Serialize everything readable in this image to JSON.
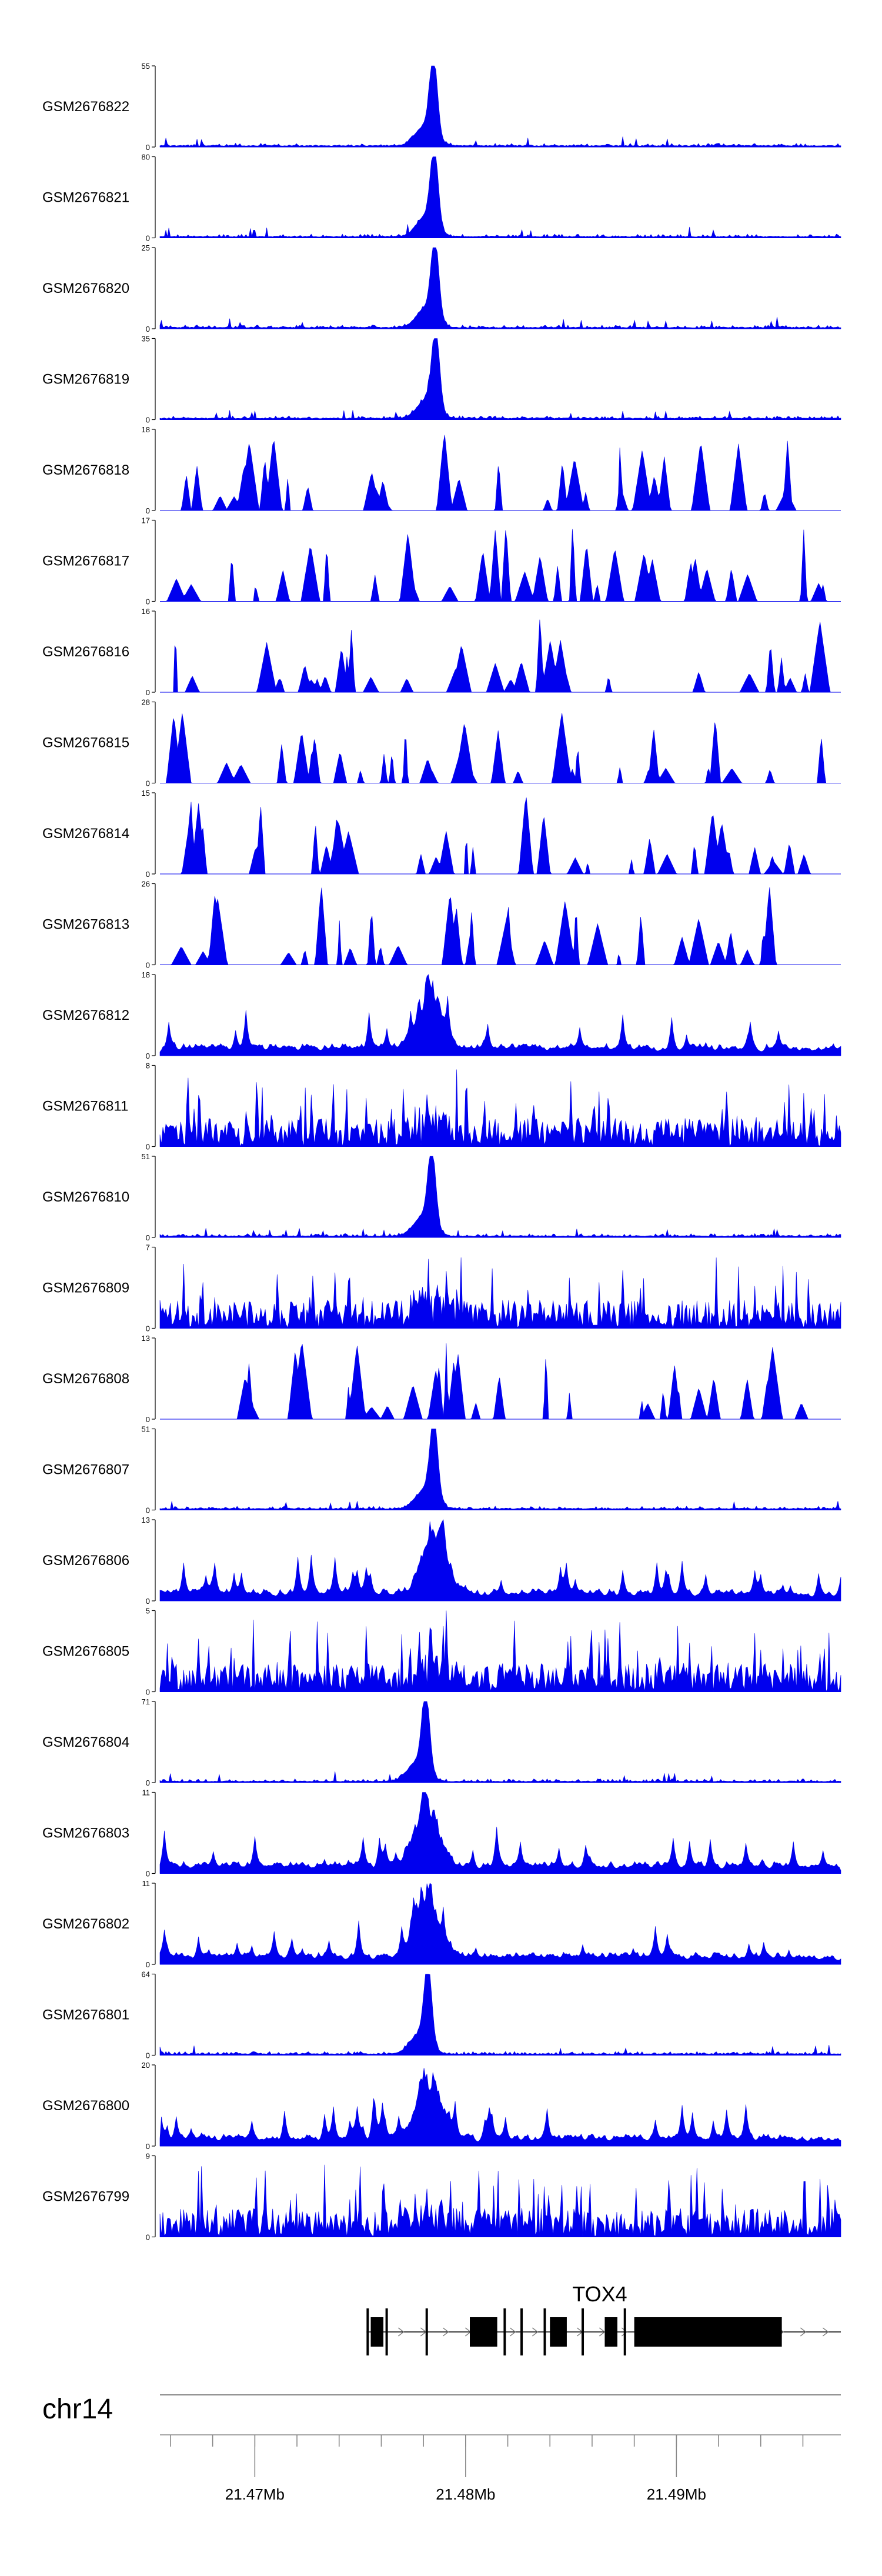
{
  "chart_data": {
    "type": "area",
    "title": "",
    "fill_color": "#0000ee",
    "region": {
      "chrom": "chr14",
      "start": 21.4655,
      "end": 21.4978,
      "unit": "Mb"
    },
    "x_ticks": [
      "21.47Mb",
      "21.48Mb",
      "21.49Mb"
    ],
    "x_tick_values": [
      21.47,
      21.48,
      21.49
    ],
    "gene": {
      "name": "TOX4",
      "strand": "+",
      "start": 21.4753,
      "end": 21.4978,
      "exons": [
        [
          21.4753,
          21.4754
        ],
        [
          21.4755,
          21.4761
        ],
        [
          21.4762,
          21.4763
        ],
        [
          21.4781,
          21.4782
        ],
        [
          21.4802,
          21.4815
        ],
        [
          21.4818,
          21.4819
        ],
        [
          21.4826,
          21.4827
        ],
        [
          21.4837,
          21.4838
        ],
        [
          21.484,
          21.4848
        ],
        [
          21.4855,
          21.4856
        ],
        [
          21.4866,
          21.4872
        ],
        [
          21.4875,
          21.4876
        ],
        [
          21.488,
          21.495
        ]
      ]
    },
    "tracks": [
      {
        "name": "GSM2676822",
        "ymax": "55",
        "profile": "sharp"
      },
      {
        "name": "GSM2676821",
        "ymax": "80",
        "profile": "sharp"
      },
      {
        "name": "GSM2676820",
        "ymax": "25",
        "profile": "sharp"
      },
      {
        "name": "GSM2676819",
        "ymax": "35",
        "profile": "sharp"
      },
      {
        "name": "GSM2676818",
        "ymax": "18",
        "profile": "sparse"
      },
      {
        "name": "GSM2676817",
        "ymax": "17",
        "profile": "sparse"
      },
      {
        "name": "GSM2676816",
        "ymax": "16",
        "profile": "sparse"
      },
      {
        "name": "GSM2676815",
        "ymax": "28",
        "profile": "sparse"
      },
      {
        "name": "GSM2676814",
        "ymax": "15",
        "profile": "sparse"
      },
      {
        "name": "GSM2676813",
        "ymax": "26",
        "profile": "sparse"
      },
      {
        "name": "GSM2676812",
        "ymax": "18",
        "profile": "broad"
      },
      {
        "name": "GSM2676811",
        "ymax": "8",
        "profile": "dense"
      },
      {
        "name": "GSM2676810",
        "ymax": "51",
        "profile": "sharp"
      },
      {
        "name": "GSM2676809",
        "ymax": "7",
        "profile": "dense"
      },
      {
        "name": "GSM2676808",
        "ymax": "13",
        "profile": "sparse"
      },
      {
        "name": "GSM2676807",
        "ymax": "51",
        "profile": "sharp"
      },
      {
        "name": "GSM2676806",
        "ymax": "13",
        "profile": "broad"
      },
      {
        "name": "GSM2676805",
        "ymax": "5",
        "profile": "dense"
      },
      {
        "name": "GSM2676804",
        "ymax": "71",
        "profile": "sharp"
      },
      {
        "name": "GSM2676803",
        "ymax": "11",
        "profile": "broad"
      },
      {
        "name": "GSM2676802",
        "ymax": "11",
        "profile": "broad"
      },
      {
        "name": "GSM2676801",
        "ymax": "64",
        "profile": "sharp"
      },
      {
        "name": "GSM2676800",
        "ymax": "20",
        "profile": "broad"
      },
      {
        "name": "GSM2676799",
        "ymax": "9",
        "profile": "dense"
      }
    ],
    "ymin_label": "0"
  }
}
